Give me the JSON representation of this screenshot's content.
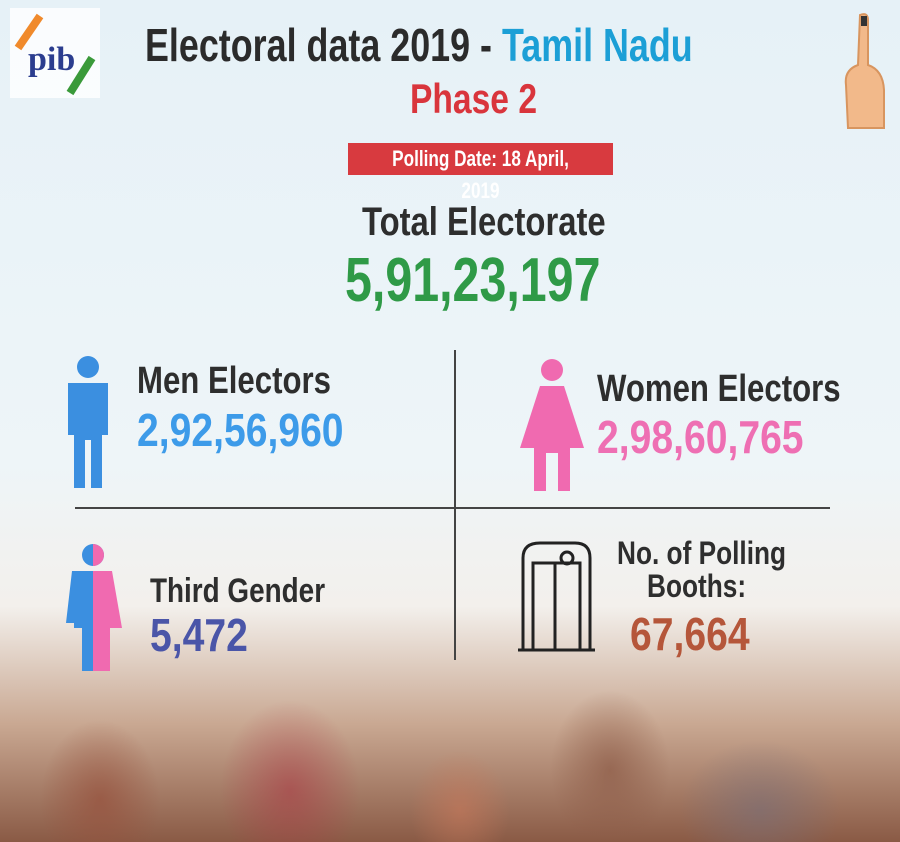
{
  "header": {
    "title_main": "Electoral data 2019 - ",
    "title_state": "Tamil Nadu",
    "phase": "Phase 2",
    "polling_date": "Polling Date: 18 April, 2019",
    "logo_text": "pib"
  },
  "total": {
    "label": "Total Electorate",
    "value": "5,91,23,197"
  },
  "men": {
    "label": "Men Electors",
    "value": "2,92,56,960"
  },
  "women": {
    "label": "Women Electors",
    "value": "2,98,60,765"
  },
  "third": {
    "label": "Third Gender",
    "value": "5,472"
  },
  "booths": {
    "label_line1": "No. of Polling",
    "label_line2": "Booths:",
    "value": "67,664"
  },
  "colors": {
    "men": "#3d9be9",
    "women": "#ee6fb3",
    "third": "#4a55a8",
    "booths": "#b5563a",
    "total": "#2f9a47",
    "phase": "#d9353c"
  }
}
